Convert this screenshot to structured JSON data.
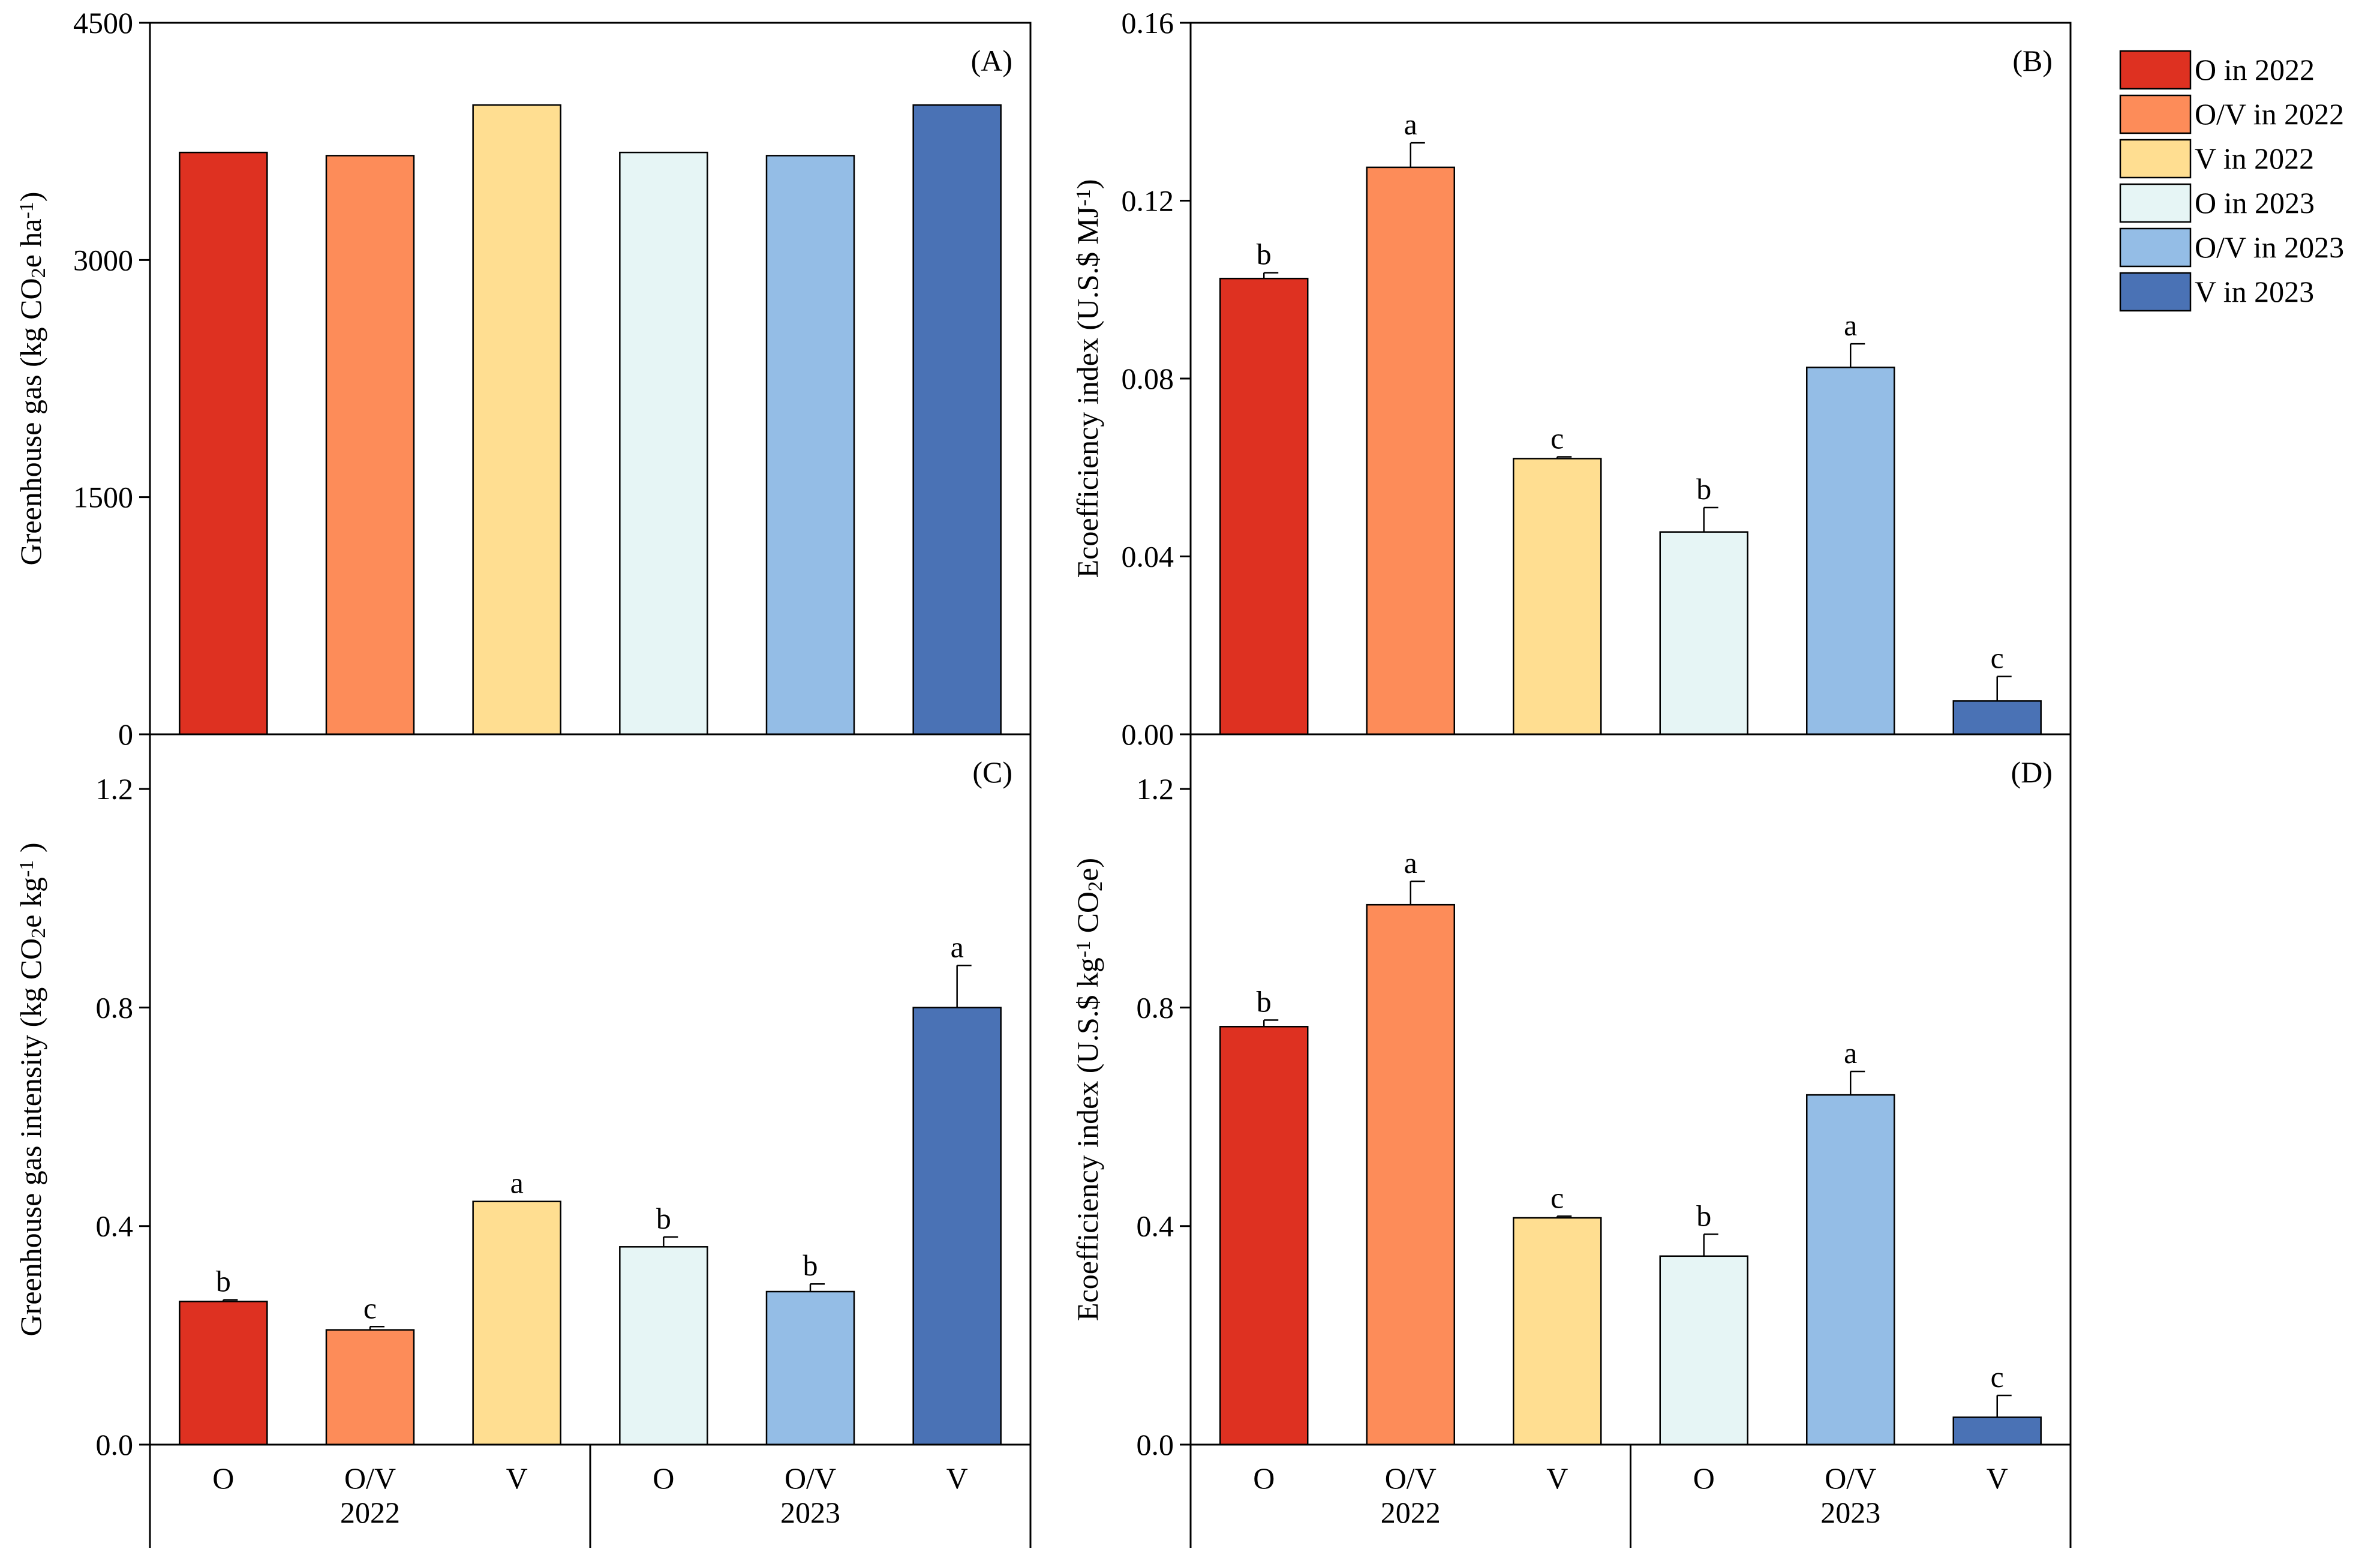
{
  "colors": {
    "O_2022": "#DE3121",
    "OV_2022": "#FD8C59",
    "V_2022": "#FFDE91",
    "O_2023": "#E6F5F5",
    "OV_2023": "#94BDE6",
    "V_2023": "#4A72B5"
  },
  "legend": [
    {
      "key": "O_2022",
      "label": "O in 2022"
    },
    {
      "key": "OV_2022",
      "label": "O/V in 2022"
    },
    {
      "key": "V_2022",
      "label": "V in 2022"
    },
    {
      "key": "O_2023",
      "label": "O in 2023"
    },
    {
      "key": "OV_2023",
      "label": "O/V in 2023"
    },
    {
      "key": "V_2023",
      "label": "V in 2023"
    }
  ],
  "x_axis": {
    "categories": [
      "O",
      "O/V",
      "V",
      "O",
      "O/V",
      "V"
    ],
    "groups": [
      "2022",
      "2022",
      "2022",
      "2023",
      "2023",
      "2023"
    ],
    "group_labels": [
      "2022",
      "2023"
    ]
  },
  "chart_data": [
    {
      "type": "bar",
      "panel": "(A)",
      "ylabel": "Greenhouse gas (kg CO2e ha-1)",
      "ylabel_parts": {
        "a": "Greenhouse gas (kg CO",
        "sub": "2",
        "b": "e ha",
        "sup": "-1",
        "c": ")"
      },
      "ylim": [
        0,
        4500
      ],
      "yticks": [
        "0",
        "1500",
        "3000",
        "4500"
      ],
      "ytick_values": [
        0,
        1500,
        3000,
        4500
      ],
      "values": [
        3680,
        3660,
        3980,
        3680,
        3660,
        3980
      ],
      "errors": [
        0,
        0,
        0,
        0,
        0,
        0
      ],
      "letters": [
        "",
        "",
        "",
        "",
        "",
        ""
      ]
    },
    {
      "type": "bar",
      "panel": "(B)",
      "ylabel": "Ecoefficiency index (U.S.$ MJ-1)",
      "ylabel_parts": {
        "a": "Ecoefficiency index (U.S.$ MJ",
        "sup": "-1",
        "b": ")"
      },
      "ylim": [
        0,
        0.16
      ],
      "yticks": [
        "0.00",
        "0.04",
        "0.08",
        "0.12",
        "0.16"
      ],
      "ytick_values": [
        0,
        0.04,
        0.08,
        0.12,
        0.16
      ],
      "values": [
        0.1025,
        0.1275,
        0.062,
        0.0455,
        0.0825,
        0.0075
      ],
      "errors": [
        0.0013,
        0.0055,
        0.0004,
        0.0055,
        0.0053,
        0.0055
      ],
      "letters": [
        "b",
        "a",
        "c",
        "b",
        "a",
        "c"
      ]
    },
    {
      "type": "bar",
      "panel": "(C)",
      "ylabel": "Greenhouse gas intensity (kg CO2e kg-1)",
      "ylabel_parts": {
        "a": "Greenhouse gas intensity (kg CO",
        "sub": "2",
        "b": "e kg",
        "sup": "-1",
        "c": " )"
      },
      "ylim": [
        0,
        1.3
      ],
      "yticks": [
        "0.0",
        "0.4",
        "0.8",
        "1.2"
      ],
      "ytick_values": [
        0,
        0.4,
        0.8,
        1.2
      ],
      "values": [
        0.262,
        0.21,
        0.445,
        0.362,
        0.28,
        0.8
      ],
      "errors": [
        0.003,
        0.006,
        0.0,
        0.018,
        0.014,
        0.077
      ],
      "letters": [
        "b",
        "c",
        "a",
        "b",
        "b",
        "a"
      ]
    },
    {
      "type": "bar",
      "panel": "(D)",
      "ylabel": "Ecoefficiency index (U.S.$ kg-1 CO2e)",
      "ylabel_parts": {
        "a": "Ecoefficiency index (U.S.$ kg",
        "sup": "-1",
        "b": " CO",
        "sub": "2",
        "c": "e)"
      },
      "ylim": [
        0,
        1.3
      ],
      "yticks": [
        "0.0",
        "0.4",
        "0.8",
        "1.2"
      ],
      "ytick_values": [
        0,
        0.4,
        0.8,
        1.2
      ],
      "values": [
        0.765,
        0.988,
        0.415,
        0.345,
        0.64,
        0.05
      ],
      "errors": [
        0.012,
        0.043,
        0.003,
        0.04,
        0.043,
        0.04
      ],
      "letters": [
        "b",
        "a",
        "c",
        "b",
        "a",
        "c"
      ]
    }
  ]
}
